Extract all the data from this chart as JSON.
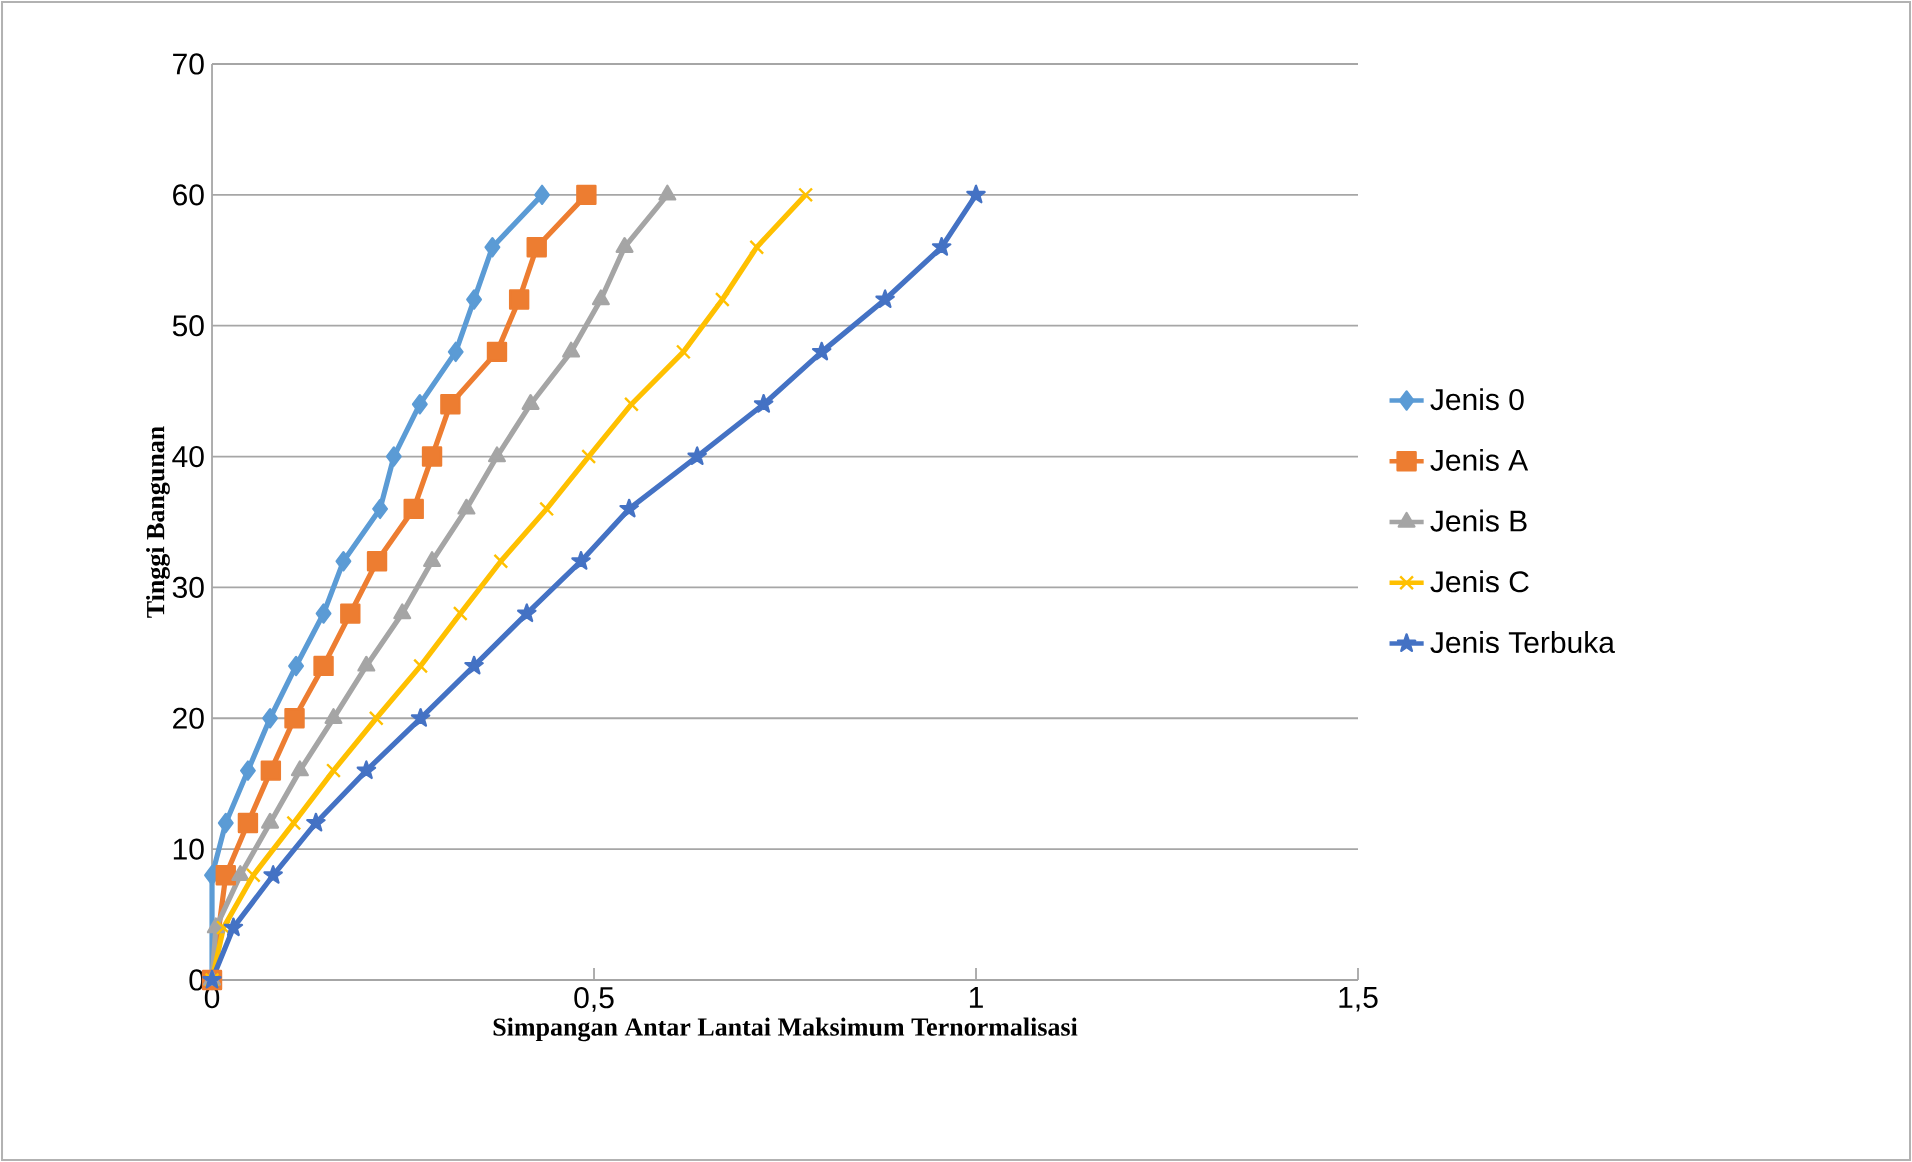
{
  "chart_data": {
    "type": "line",
    "xlabel": "Simpangan Antar Lantai Maksimum Ternormalisasi",
    "ylabel": "Tinggi Bangunan",
    "xlim": [
      0,
      1.5
    ],
    "xticks": [
      0,
      {
        "value": 0.5,
        "label": "0,5"
      },
      1,
      {
        "value": 1.5,
        "label": "1,5"
      }
    ],
    "ylim": [
      0,
      70
    ],
    "yticks": [
      0,
      10,
      20,
      30,
      40,
      50,
      60,
      70
    ],
    "grid": "y",
    "legend": "right",
    "line_style": "solid",
    "series": [
      {
        "name": "Jenis 0",
        "color": "#5b9bd5",
        "marker": "diamond",
        "x": [
          0,
          0,
          0.018,
          0.047,
          0.076,
          0.11,
          0.146,
          0.172,
          0.22,
          0.238,
          0.272,
          0.319,
          0.343,
          0.367,
          0.432
        ],
        "values": [
          0,
          8,
          12,
          16,
          20,
          24,
          28,
          32,
          36,
          40,
          44,
          48,
          52,
          56,
          60
        ]
      },
      {
        "name": "Jenis A",
        "color": "#ed7d31",
        "marker": "square",
        "x": [
          0,
          0.018,
          0.047,
          0.077,
          0.108,
          0.146,
          0.181,
          0.216,
          0.264,
          0.288,
          0.312,
          0.373,
          0.402,
          0.425,
          0.49
        ],
        "values": [
          0,
          8,
          12,
          16,
          20,
          24,
          28,
          32,
          36,
          40,
          44,
          48,
          52,
          56,
          60
        ]
      },
      {
        "name": "Jenis B",
        "color": "#a5a5a5",
        "marker": "triangle",
        "x": [
          0,
          0.005,
          0.037,
          0.076,
          0.115,
          0.159,
          0.202,
          0.249,
          0.288,
          0.333,
          0.373,
          0.417,
          0.47,
          0.509,
          0.54,
          0.596
        ],
        "values": [
          0,
          4,
          8,
          12,
          16,
          20,
          24,
          28,
          32,
          36,
          40,
          44,
          48,
          52,
          56,
          60
        ]
      },
      {
        "name": "Jenis C",
        "color": "#ffc000",
        "marker": "cross",
        "x": [
          0,
          0.015,
          0.054,
          0.107,
          0.159,
          0.215,
          0.273,
          0.325,
          0.378,
          0.438,
          0.493,
          0.549,
          0.617,
          0.668,
          0.713,
          0.777
        ],
        "values": [
          0,
          4,
          8,
          12,
          16,
          20,
          24,
          28,
          32,
          36,
          40,
          44,
          48,
          52,
          56,
          60
        ]
      },
      {
        "name": "Jenis Terbuka",
        "color": "#4472c4",
        "marker": "star",
        "x": [
          0,
          0.028,
          0.08,
          0.136,
          0.202,
          0.273,
          0.343,
          0.412,
          0.483,
          0.546,
          0.635,
          0.722,
          0.798,
          0.881,
          0.955,
          1.0
        ],
        "values": [
          0,
          4,
          8,
          12,
          16,
          20,
          24,
          28,
          32,
          36,
          40,
          44,
          48,
          52,
          56,
          60
        ]
      }
    ]
  }
}
